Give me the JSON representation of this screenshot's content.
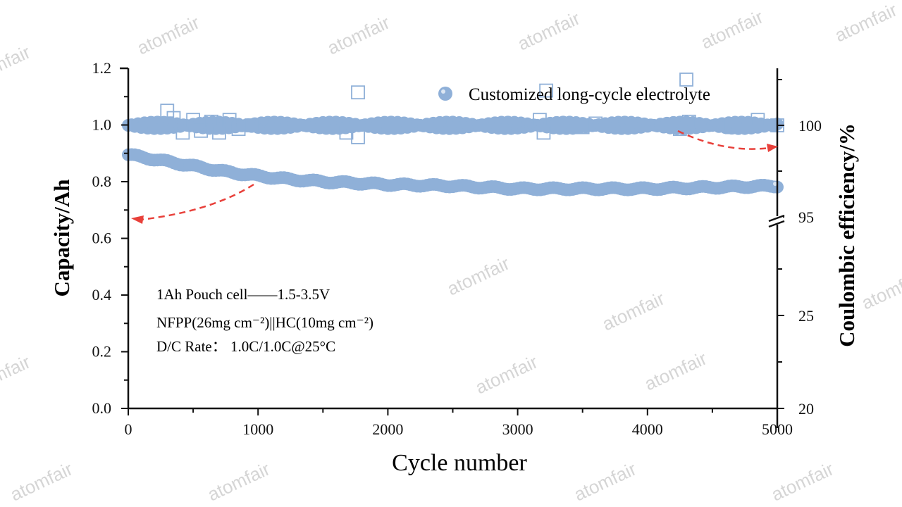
{
  "chart_data": {
    "type": "scatter",
    "title": "",
    "xlabel": "Cycle number",
    "ylabel": "Capacity/Ah",
    "y2label": "Coulombic efficiency/%",
    "xlim": [
      0,
      5000
    ],
    "ylim": [
      0,
      1.2
    ],
    "y2_segments": [
      [
        20,
        25
      ],
      [
        95,
        102.5
      ]
    ],
    "xticks": [
      "0",
      "1000",
      "2000",
      "3000",
      "4000",
      "5000"
    ],
    "yticks": [
      "0.0",
      "0.2",
      "0.4",
      "0.6",
      "0.8",
      "1.0",
      "1.2"
    ],
    "y2ticks": [
      "20",
      "25",
      "95",
      "100"
    ],
    "legend": {
      "label": "Customized long-cycle electrolyte",
      "placement": "top-right"
    },
    "series": [
      {
        "name": "Capacity",
        "axis": "left",
        "marker": "filled-circle",
        "x": [
          0,
          250,
          500,
          750,
          1000,
          1250,
          1500,
          1750,
          2000,
          2500,
          3000,
          3500,
          4000,
          4500,
          5000
        ],
        "values": [
          0.895,
          0.875,
          0.855,
          0.835,
          0.82,
          0.808,
          0.8,
          0.795,
          0.79,
          0.785,
          0.775,
          0.775,
          0.775,
          0.78,
          0.785
        ]
      },
      {
        "name": "Coulombic efficiency",
        "axis": "right",
        "marker": "filled-circle",
        "x": [
          0,
          1000,
          2000,
          3000,
          4000,
          5000
        ],
        "values": [
          100,
          100,
          100,
          100,
          100,
          100
        ]
      },
      {
        "name": "Coulombic efficiency outliers",
        "axis": "right",
        "marker": "open-square",
        "x": [
          300,
          350,
          420,
          500,
          560,
          640,
          700,
          780,
          850,
          950,
          1680,
          1770,
          1770,
          3170,
          3200,
          3220,
          3500,
          3600,
          4250,
          4300,
          4320,
          4650,
          4850,
          5000
        ],
        "values": [
          100.8,
          100.4,
          99.6,
          100.3,
          99.7,
          100.2,
          99.6,
          100.3,
          99.8,
          100.0,
          99.6,
          99.35,
          101.8,
          100.3,
          99.6,
          101.9,
          99.9,
          100.1,
          99.8,
          102.5,
          100.2,
          99.9,
          100.3,
          100.0
        ]
      }
    ],
    "annotations": [
      "1Ah Pouch cell——1.5-3.5V",
      "NFPP(26mg cm⁻²)||HC(10mg cm⁻²)",
      "D/C Rate： 1.0C/1.0C@25°C"
    ],
    "colors": {
      "marker": "#8fb0d8",
      "arrow": "#e8403a",
      "axis": "#111111"
    }
  },
  "watermark": "atomfair"
}
